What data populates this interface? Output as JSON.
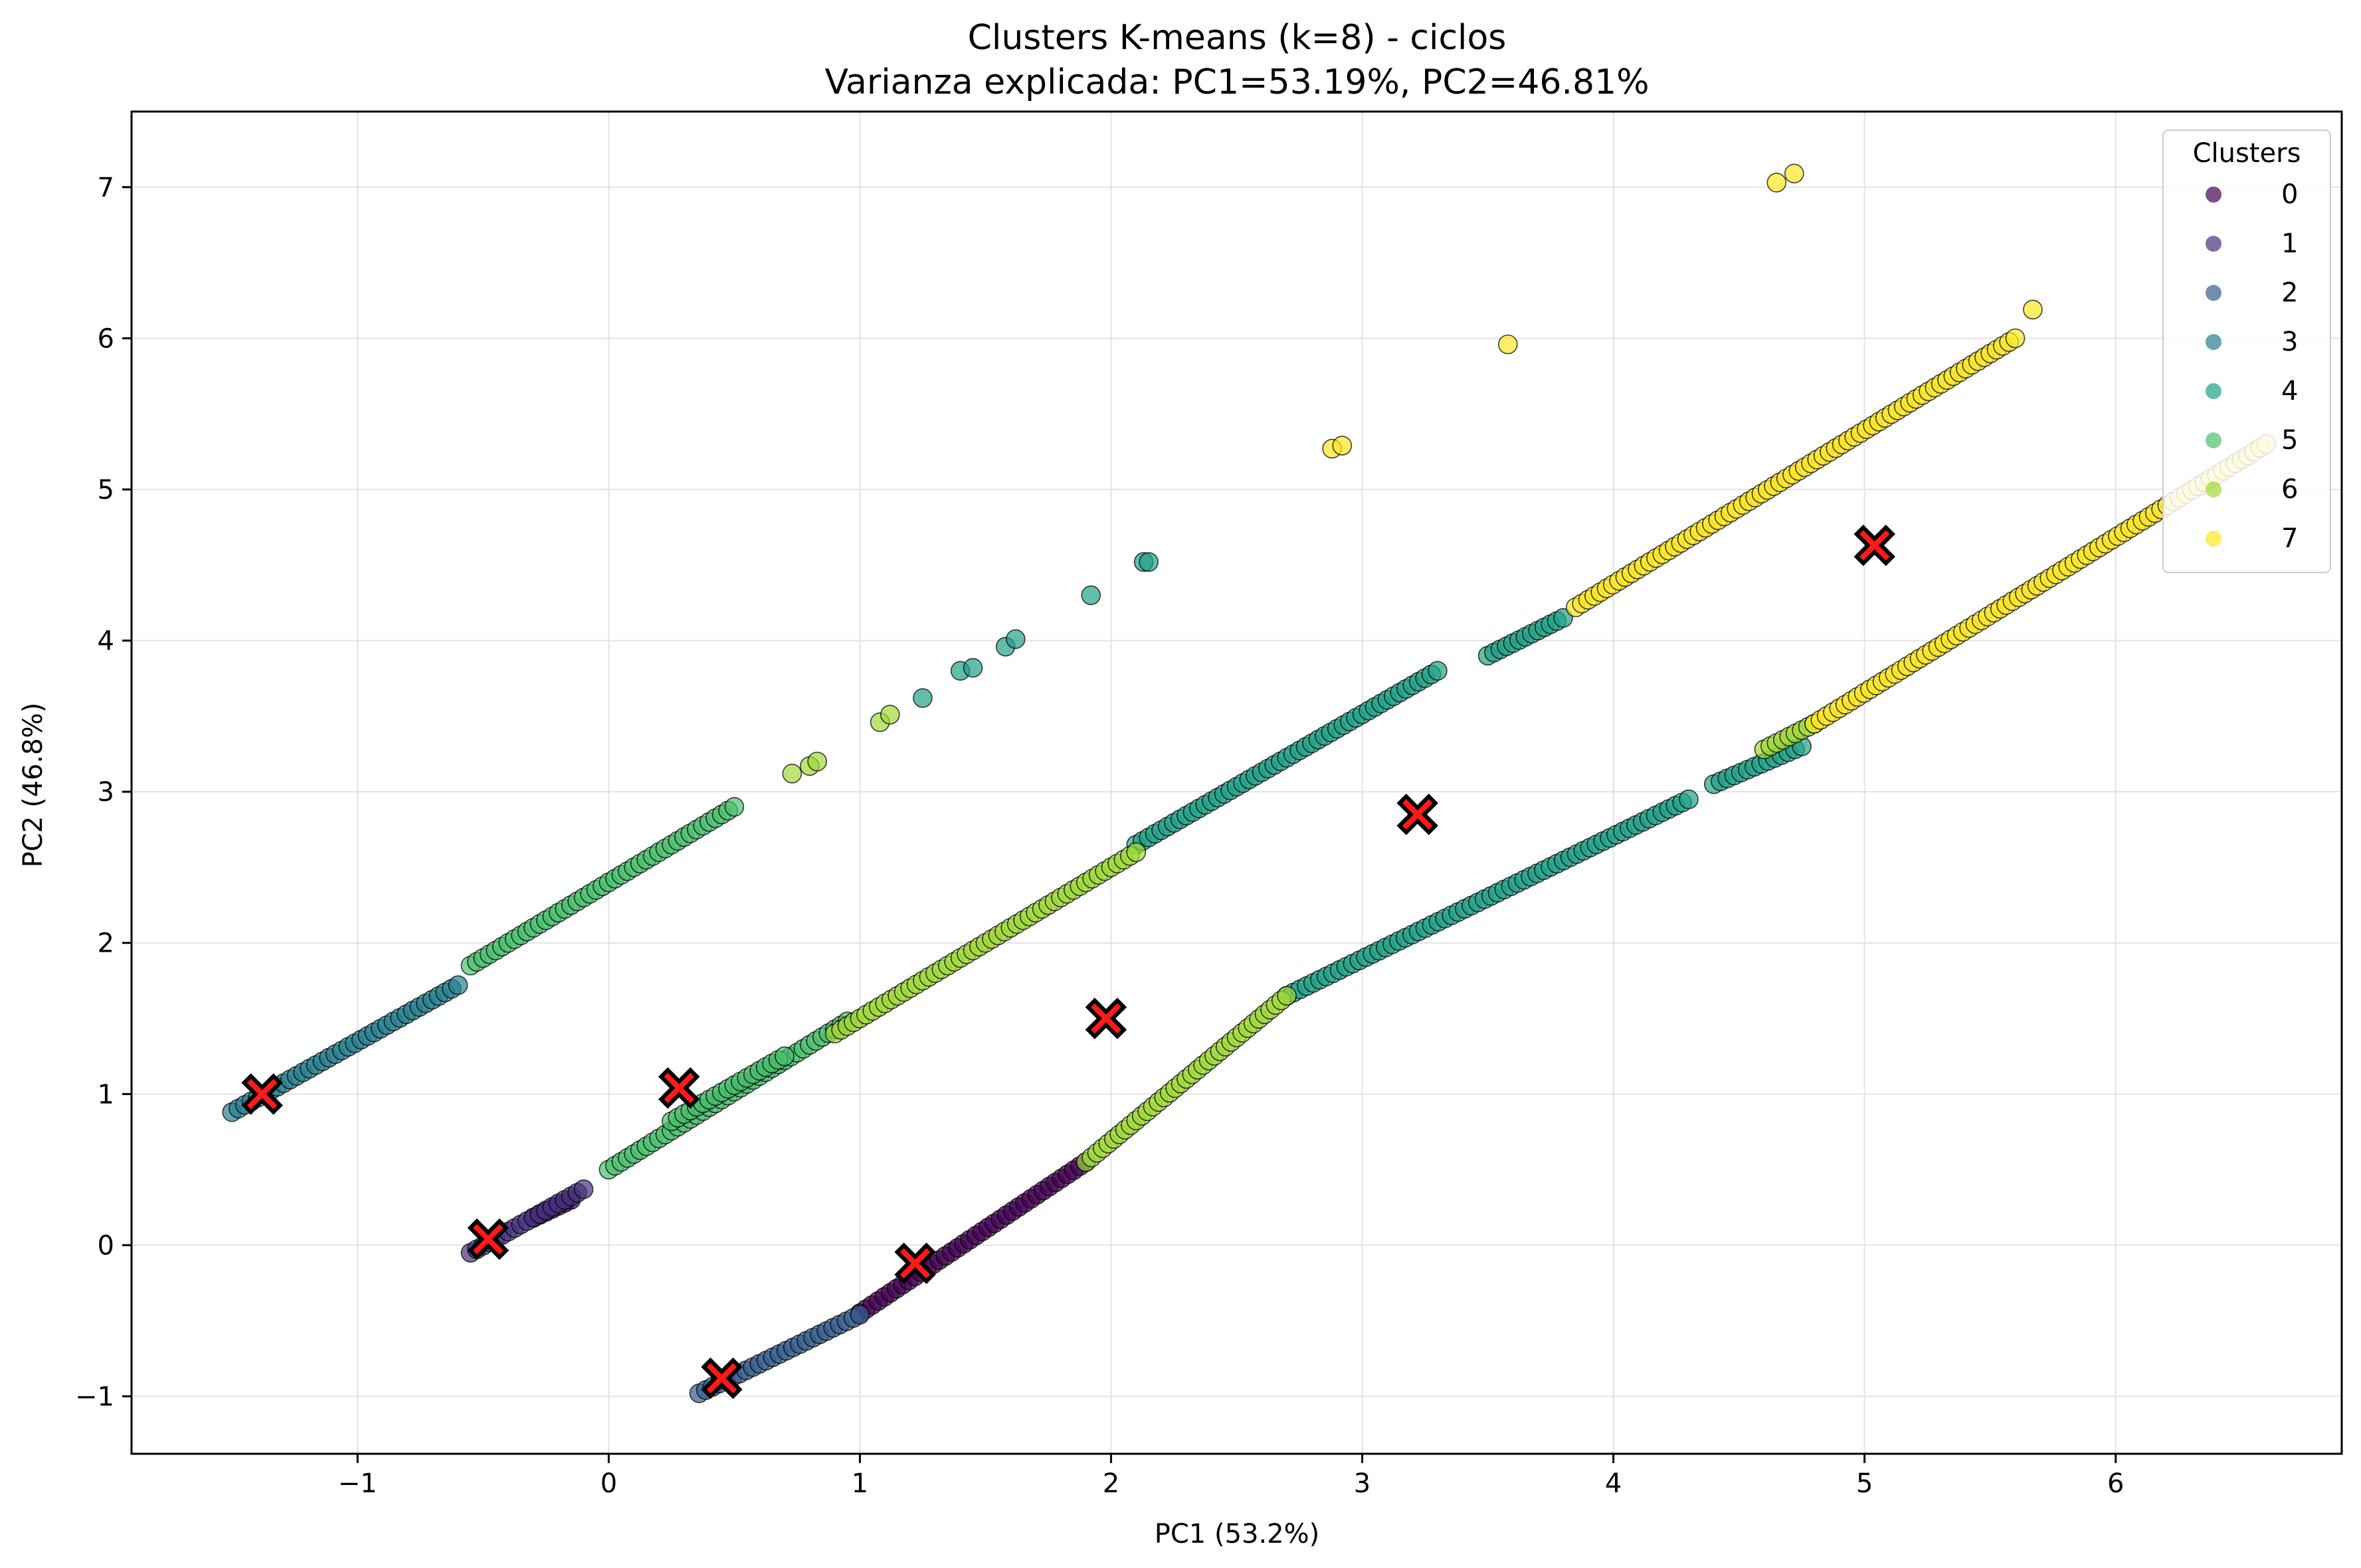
{
  "chart_data": {
    "type": "scatter",
    "title": "Clusters K-means (k=8) - ciclos",
    "subtitle": "Varianza explicada: PC1=53.19%, PC2=46.81%",
    "xlabel": "PC1 (53.2%)",
    "ylabel": "PC2 (46.8%)",
    "xlim": [
      -1.9,
      6.9
    ],
    "ylim": [
      -1.38,
      7.5
    ],
    "xticks": [
      -1,
      0,
      1,
      2,
      3,
      4,
      5,
      6
    ],
    "yticks": [
      -1,
      0,
      1,
      2,
      3,
      4,
      5,
      6,
      7
    ],
    "xtick_labels": [
      "−1",
      "0",
      "1",
      "2",
      "3",
      "4",
      "5",
      "6"
    ],
    "ytick_labels": [
      "−1",
      "0",
      "1",
      "2",
      "3",
      "4",
      "5",
      "6",
      "7"
    ],
    "grid": true,
    "legend": {
      "title": "Clusters",
      "position": "top-right"
    },
    "series": [
      {
        "name": "0",
        "color": "#440154",
        "segments": [
          [
            1.0,
            -0.45,
            1.9,
            0.55
          ],
          [
            -0.3,
            0.18,
            -0.15,
            0.3
          ]
        ]
      },
      {
        "name": "1",
        "color": "#46327e",
        "segments": [
          [
            -0.55,
            -0.05,
            -0.1,
            0.37
          ]
        ]
      },
      {
        "name": "2",
        "color": "#365c8d",
        "segments": [
          [
            0.36,
            -0.98,
            1.0,
            -0.46
          ]
        ]
      },
      {
        "name": "3",
        "color": "#277f8e",
        "segments": [
          [
            -1.5,
            0.88,
            -0.6,
            1.72
          ]
        ]
      },
      {
        "name": "4",
        "color": "#1fa187",
        "segments": [
          [
            2.1,
            2.65,
            3.3,
            3.8
          ],
          [
            3.5,
            3.9,
            3.8,
            4.15
          ],
          [
            2.7,
            1.65,
            4.3,
            2.95
          ],
          [
            4.4,
            3.05,
            4.75,
            3.3
          ]
        ],
        "points": [
          [
            1.25,
            3.62
          ],
          [
            1.4,
            3.8
          ],
          [
            1.45,
            3.82
          ],
          [
            1.58,
            3.96
          ],
          [
            1.62,
            4.01
          ],
          [
            1.92,
            4.3
          ],
          [
            2.13,
            4.52
          ],
          [
            2.15,
            4.52
          ]
        ]
      },
      {
        "name": "5",
        "color": "#4ac16d",
        "segments": [
          [
            -0.55,
            1.85,
            0.5,
            2.9
          ],
          [
            0.0,
            0.5,
            0.95,
            1.48
          ],
          [
            0.25,
            0.82,
            0.7,
            1.25
          ]
        ]
      },
      {
        "name": "6",
        "color": "#a0da39",
        "segments": [
          [
            0.9,
            1.4,
            2.1,
            2.6
          ],
          [
            1.9,
            0.55,
            2.7,
            1.65
          ],
          [
            4.6,
            3.28,
            4.8,
            3.45
          ]
        ],
        "points": [
          [
            0.73,
            3.12
          ],
          [
            0.8,
            3.17
          ],
          [
            0.83,
            3.2
          ],
          [
            1.08,
            3.46
          ],
          [
            1.12,
            3.51
          ]
        ]
      },
      {
        "name": "7",
        "color": "#fde725",
        "segments": [
          [
            3.85,
            4.22,
            5.6,
            6.0
          ],
          [
            4.8,
            3.45,
            6.6,
            5.3
          ]
        ],
        "points": [
          [
            2.88,
            5.27
          ],
          [
            2.92,
            5.29
          ],
          [
            3.58,
            5.96
          ],
          [
            4.65,
            7.03
          ],
          [
            4.72,
            7.09
          ],
          [
            5.67,
            6.19
          ]
        ]
      }
    ],
    "centroids": [
      [
        -1.38,
        1.0
      ],
      [
        -0.48,
        0.04
      ],
      [
        0.28,
        1.04
      ],
      [
        0.45,
        -0.88
      ],
      [
        1.22,
        -0.12
      ],
      [
        1.98,
        1.5
      ],
      [
        3.22,
        2.85
      ],
      [
        5.04,
        4.63
      ]
    ]
  }
}
